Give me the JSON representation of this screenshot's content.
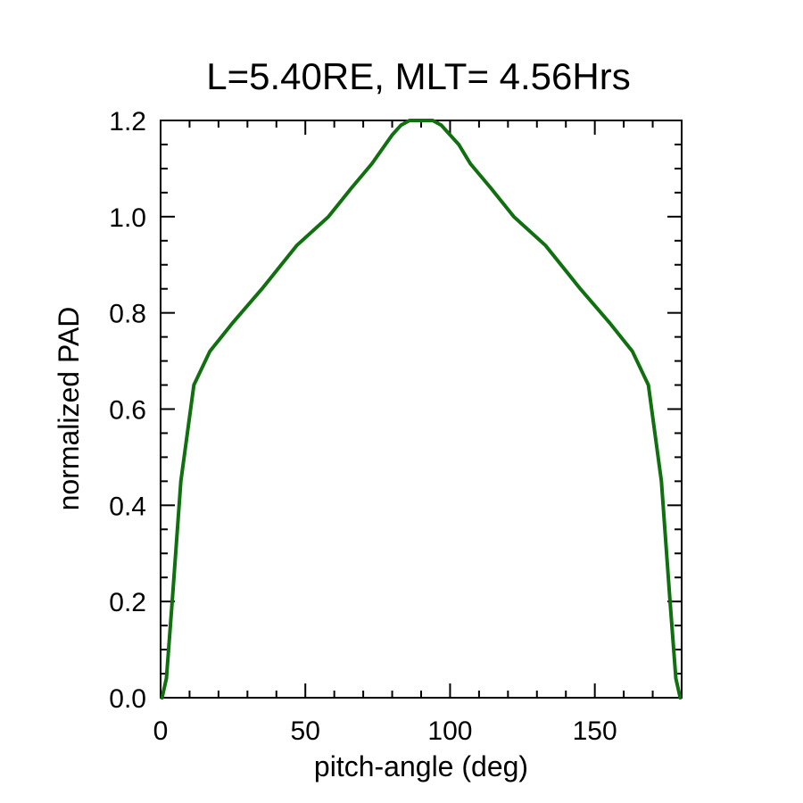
{
  "chart_data": {
    "type": "line",
    "title": "L=5.40RE, MLT= 4.56Hrs",
    "xlabel": "pitch-angle (deg)",
    "ylabel": "normalized PAD",
    "xlim": [
      0,
      180
    ],
    "ylim": [
      0,
      1.2
    ],
    "x_ticks": [
      0,
      50,
      100,
      150
    ],
    "x_tick_labels": [
      "0",
      "50",
      "100",
      "150"
    ],
    "y_ticks": [
      0,
      0.2,
      0.4,
      0.6,
      0.8,
      1.0,
      1.2
    ],
    "y_tick_labels": [
      "0.0",
      "0.2",
      "0.4",
      "0.6",
      "0.8",
      "1.0",
      "1.2"
    ],
    "grid": false,
    "line_color": "#107010",
    "series": [
      {
        "x": [
          0.5,
          2,
          4,
          7,
          11.5,
          17,
          25,
          35,
          47,
          58,
          66,
          73,
          80,
          83,
          86,
          89,
          91,
          94,
          97,
          100,
          103,
          107,
          114,
          122,
          133,
          145,
          155,
          163,
          168.5,
          173,
          176,
          178,
          179.5
        ],
        "y": [
          0.0,
          0.04,
          0.2,
          0.45,
          0.65,
          0.72,
          0.78,
          0.85,
          0.94,
          1.0,
          1.06,
          1.11,
          1.17,
          1.19,
          1.2,
          1.2,
          1.2,
          1.2,
          1.19,
          1.17,
          1.15,
          1.11,
          1.06,
          1.0,
          0.94,
          0.85,
          0.78,
          0.72,
          0.65,
          0.45,
          0.2,
          0.04,
          0.0
        ]
      }
    ]
  }
}
